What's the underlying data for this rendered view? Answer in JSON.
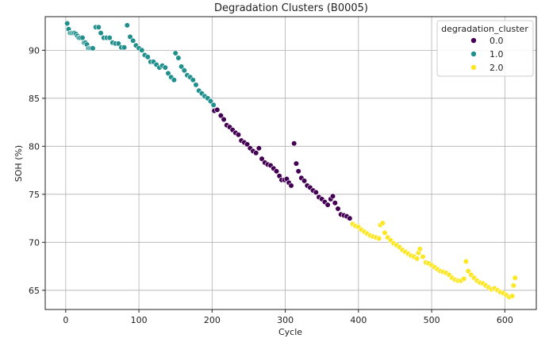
{
  "chart_data": {
    "type": "scatter",
    "title": "Degradation Clusters (B0005)",
    "xlabel": "Cycle",
    "ylabel": "SOH (%)",
    "xlim": [
      -28,
      643
    ],
    "ylim": [
      63,
      93.5
    ],
    "xticks": [
      0,
      100,
      200,
      300,
      400,
      500,
      600
    ],
    "yticks": [
      65,
      70,
      75,
      80,
      85,
      90
    ],
    "grid": true,
    "legend": {
      "title": "degradation_cluster",
      "placement": "top-right"
    },
    "series": [
      {
        "name": "0.0",
        "color": "#440154",
        "points": [
          [
            203,
            83.7
          ],
          [
            207,
            83.8
          ],
          [
            212,
            83.2
          ],
          [
            216,
            82.8
          ],
          [
            220,
            82.2
          ],
          [
            224,
            82.0
          ],
          [
            228,
            81.7
          ],
          [
            232,
            81.4
          ],
          [
            236,
            81.2
          ],
          [
            240,
            80.6
          ],
          [
            244,
            80.4
          ],
          [
            248,
            80.2
          ],
          [
            252,
            79.8
          ],
          [
            256,
            79.5
          ],
          [
            260,
            79.3
          ],
          [
            264,
            79.8
          ],
          [
            268,
            78.7
          ],
          [
            272,
            78.3
          ],
          [
            276,
            78.1
          ],
          [
            280,
            78.0
          ],
          [
            284,
            77.7
          ],
          [
            288,
            77.4
          ],
          [
            292,
            76.9
          ],
          [
            295,
            76.5
          ],
          [
            299,
            76.5
          ],
          [
            302,
            76.6
          ],
          [
            305,
            76.2
          ],
          [
            308,
            75.9
          ],
          [
            312,
            80.3
          ],
          [
            315,
            78.2
          ],
          [
            318,
            77.4
          ],
          [
            322,
            76.7
          ],
          [
            326,
            76.4
          ],
          [
            330,
            75.9
          ],
          [
            334,
            75.7
          ],
          [
            338,
            75.4
          ],
          [
            342,
            75.2
          ],
          [
            346,
            74.7
          ],
          [
            350,
            74.5
          ],
          [
            354,
            74.2
          ],
          [
            358,
            73.9
          ],
          [
            362,
            74.5
          ],
          [
            365,
            74.8
          ],
          [
            368,
            74.1
          ],
          [
            372,
            73.5
          ],
          [
            376,
            72.9
          ],
          [
            380,
            72.8
          ],
          [
            384,
            72.7
          ],
          [
            388,
            72.5
          ]
        ]
      },
      {
        "name": "1.0",
        "color": "#21908d",
        "points": [
          [
            2,
            92.8
          ],
          [
            4,
            92.2
          ],
          [
            6,
            91.8
          ],
          [
            8,
            91.8
          ],
          [
            10,
            91.8
          ],
          [
            12,
            91.8
          ],
          [
            14,
            91.7
          ],
          [
            16,
            91.5
          ],
          [
            18,
            91.3
          ],
          [
            20,
            91.3
          ],
          [
            23,
            91.3
          ],
          [
            25,
            90.8
          ],
          [
            27,
            90.8
          ],
          [
            29,
            90.6
          ],
          [
            31,
            90.2
          ],
          [
            33,
            90.2
          ],
          [
            35,
            90.2
          ],
          [
            37,
            90.2
          ],
          [
            41,
            92.4
          ],
          [
            45,
            92.4
          ],
          [
            48,
            91.8
          ],
          [
            52,
            91.3
          ],
          [
            56,
            91.3
          ],
          [
            60,
            91.3
          ],
          [
            64,
            90.8
          ],
          [
            68,
            90.7
          ],
          [
            72,
            90.7
          ],
          [
            76,
            90.3
          ],
          [
            80,
            90.3
          ],
          [
            84,
            92.6
          ],
          [
            88,
            91.4
          ],
          [
            92,
            91.0
          ],
          [
            96,
            90.5
          ],
          [
            100,
            90.2
          ],
          [
            104,
            90.0
          ],
          [
            108,
            89.5
          ],
          [
            112,
            89.3
          ],
          [
            116,
            88.8
          ],
          [
            120,
            88.8
          ],
          [
            124,
            88.5
          ],
          [
            128,
            88.2
          ],
          [
            132,
            88.4
          ],
          [
            136,
            88.2
          ],
          [
            140,
            87.6
          ],
          [
            144,
            87.2
          ],
          [
            148,
            86.9
          ],
          [
            150,
            89.7
          ],
          [
            154,
            89.2
          ],
          [
            158,
            88.3
          ],
          [
            162,
            87.9
          ],
          [
            166,
            87.4
          ],
          [
            170,
            87.2
          ],
          [
            174,
            86.9
          ],
          [
            178,
            86.4
          ],
          [
            182,
            85.8
          ],
          [
            186,
            85.5
          ],
          [
            190,
            85.2
          ],
          [
            194,
            85.0
          ],
          [
            198,
            84.7
          ],
          [
            202,
            84.3
          ]
        ]
      },
      {
        "name": "2.0",
        "color": "#fde725",
        "points": [
          [
            392,
            71.9
          ],
          [
            396,
            71.7
          ],
          [
            400,
            71.6
          ],
          [
            404,
            71.3
          ],
          [
            408,
            71.1
          ],
          [
            412,
            70.9
          ],
          [
            416,
            70.7
          ],
          [
            420,
            70.6
          ],
          [
            424,
            70.5
          ],
          [
            428,
            70.4
          ],
          [
            430,
            71.8
          ],
          [
            433,
            72.0
          ],
          [
            436,
            71.0
          ],
          [
            440,
            70.5
          ],
          [
            444,
            70.2
          ],
          [
            448,
            69.9
          ],
          [
            452,
            69.7
          ],
          [
            456,
            69.5
          ],
          [
            460,
            69.2
          ],
          [
            464,
            69.0
          ],
          [
            468,
            68.8
          ],
          [
            472,
            68.6
          ],
          [
            476,
            68.5
          ],
          [
            480,
            68.3
          ],
          [
            482,
            68.9
          ],
          [
            484,
            69.3
          ],
          [
            488,
            68.5
          ],
          [
            492,
            67.9
          ],
          [
            496,
            67.8
          ],
          [
            500,
            67.6
          ],
          [
            504,
            67.4
          ],
          [
            508,
            67.2
          ],
          [
            512,
            67.0
          ],
          [
            516,
            66.9
          ],
          [
            520,
            66.8
          ],
          [
            524,
            66.6
          ],
          [
            528,
            66.3
          ],
          [
            532,
            66.1
          ],
          [
            536,
            66.0
          ],
          [
            540,
            66.0
          ],
          [
            544,
            66.2
          ],
          [
            547,
            68.0
          ],
          [
            550,
            67.0
          ],
          [
            554,
            66.6
          ],
          [
            558,
            66.3
          ],
          [
            562,
            66.0
          ],
          [
            566,
            65.8
          ],
          [
            570,
            65.7
          ],
          [
            574,
            65.5
          ],
          [
            578,
            65.3
          ],
          [
            582,
            65.1
          ],
          [
            586,
            65.2
          ],
          [
            590,
            65.0
          ],
          [
            594,
            64.8
          ],
          [
            598,
            64.7
          ],
          [
            602,
            64.5
          ],
          [
            606,
            64.3
          ],
          [
            610,
            64.4
          ],
          [
            612,
            65.5
          ],
          [
            614,
            66.3
          ]
        ]
      }
    ]
  }
}
